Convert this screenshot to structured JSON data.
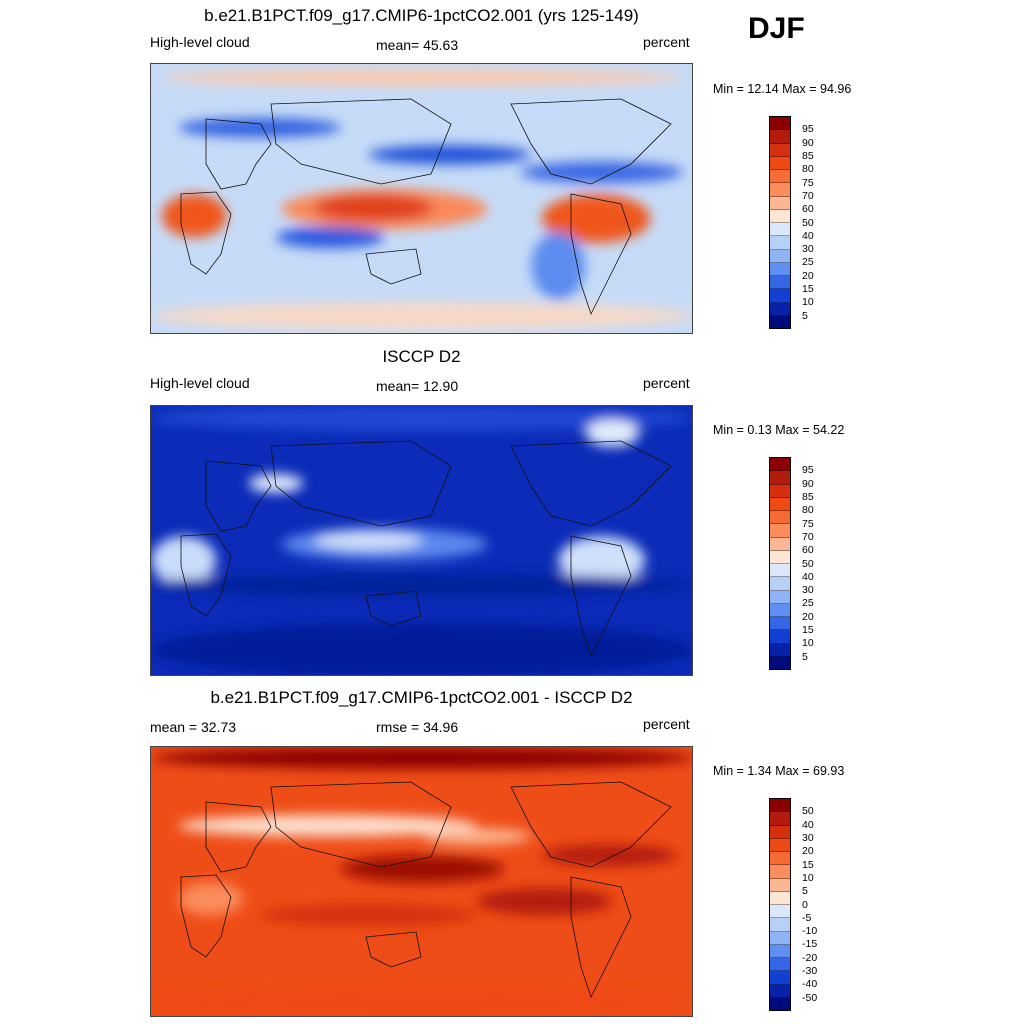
{
  "season": "DJF",
  "panels": [
    {
      "title": "b.e21.B1PCT.f09_g17.CMIP6-1pctCO2.001 (yrs 125-149)",
      "left_text": "High-level cloud",
      "center_text": "mean=  45.63",
      "right_text": "percent",
      "minmax": "Min =  12.14 Max =  94.96",
      "colorbar_labels": [
        "95",
        "90",
        "85",
        "80",
        "75",
        "70",
        "60",
        "50",
        "40",
        "30",
        "25",
        "20",
        "15",
        "10",
        "5"
      ],
      "colorbar_colors": [
        "#8b0000",
        "#b31b0d",
        "#d4300f",
        "#ee4a14",
        "#f66a33",
        "#fa8d5b",
        "#fbb793",
        "#fde6d4",
        "#dbe8fb",
        "#b7d0f8",
        "#8eb4f5",
        "#5f8ff0",
        "#3466e6",
        "#1240d4",
        "#0721a8",
        "#000a7a"
      ],
      "field": "model"
    },
    {
      "title": "ISCCP D2",
      "left_text": "High-level cloud",
      "center_text": "mean=  12.90",
      "right_text": "percent",
      "minmax": "Min =   0.13 Max =  54.22",
      "colorbar_labels": [
        "95",
        "90",
        "85",
        "80",
        "75",
        "70",
        "60",
        "50",
        "40",
        "30",
        "25",
        "20",
        "15",
        "10",
        "5"
      ],
      "colorbar_colors": [
        "#8b0000",
        "#b31b0d",
        "#d4300f",
        "#ee4a14",
        "#f66a33",
        "#fa8d5b",
        "#fbb793",
        "#fde6d4",
        "#dbe8fb",
        "#b7d0f8",
        "#8eb4f5",
        "#5f8ff0",
        "#3466e6",
        "#1240d4",
        "#0721a8",
        "#000a7a"
      ],
      "field": "obs"
    },
    {
      "title": "b.e21.B1PCT.f09_g17.CMIP6-1pctCO2.001 - ISCCP D2",
      "left_text": "mean =  32.73",
      "center_text": "rmse =  34.96",
      "right_text": "percent",
      "minmax": "Min =   1.34 Max =  69.93",
      "colorbar_labels": [
        "50",
        "40",
        "30",
        "20",
        "15",
        "10",
        "5",
        "0",
        "-5",
        "-10",
        "-15",
        "-20",
        "-30",
        "-40",
        "-50"
      ],
      "colorbar_colors": [
        "#8b0000",
        "#b31b0d",
        "#d4300f",
        "#ee4a14",
        "#f66a33",
        "#fa8d5b",
        "#fbb793",
        "#fde6d4",
        "#dbe8fb",
        "#b7d0f8",
        "#8eb4f5",
        "#5f8ff0",
        "#3466e6",
        "#1240d4",
        "#0721a8",
        "#000a7a"
      ],
      "field": "diff"
    }
  ]
}
